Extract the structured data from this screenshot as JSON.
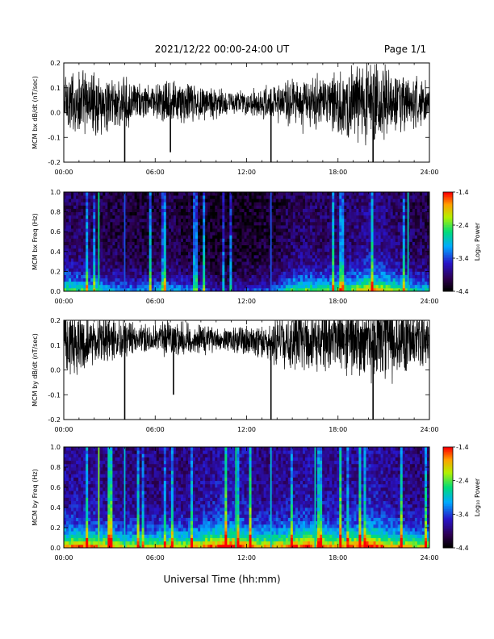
{
  "header": {
    "title": "2021/12/22  00:00-24:00 UT",
    "page": "Page 1/1"
  },
  "footer": {
    "xlabel": "Universal Time (hh:mm)"
  },
  "colors": {
    "trace": "#000000",
    "background": "#ffffff",
    "axis": "#000000"
  },
  "chart_data": [
    {
      "type": "line",
      "ylabel": "MCM bx dB/dt (nT/sec)",
      "ylim": [
        -0.2,
        0.2
      ],
      "yticks": [
        "0.2",
        "0.1",
        "0.0",
        "-0.1",
        "-0.2"
      ],
      "yticks_values": [
        0.2,
        0.1,
        0.0,
        -0.1,
        -0.2
      ],
      "xlim": [
        0,
        24
      ],
      "xticks": [
        "00:00",
        "06:00",
        "12:00",
        "18:00",
        "24:00"
      ],
      "x": [
        0,
        1,
        2,
        3,
        4,
        5,
        6,
        7,
        8,
        9,
        10,
        11,
        12,
        13,
        14,
        15,
        16,
        17,
        18,
        19,
        20,
        21,
        22,
        23,
        24
      ],
      "amplitude": [
        0.12,
        0.11,
        0.1,
        0.09,
        0.08,
        0.06,
        0.06,
        0.07,
        0.07,
        0.06,
        0.05,
        0.04,
        0.04,
        0.05,
        0.06,
        0.1,
        0.09,
        0.08,
        0.1,
        0.11,
        0.14,
        0.13,
        0.1,
        0.08,
        0.07
      ],
      "baseline": 0.04,
      "spikes": [
        {
          "x": 4.0,
          "y": -0.2
        },
        {
          "x": 13.6,
          "y": -0.2
        },
        {
          "x": 7.0,
          "y": -0.16
        },
        {
          "x": 20.3,
          "y": -0.2
        }
      ]
    },
    {
      "type": "heatmap",
      "ylabel": "MCM bx Freq (Hz)",
      "ylim": [
        0,
        1
      ],
      "yticks": [
        "1.0",
        "0.8",
        "0.6",
        "0.4",
        "0.2",
        "0.0"
      ],
      "yticks_values": [
        1.0,
        0.8,
        0.6,
        0.4,
        0.2,
        0.0
      ],
      "xlim": [
        0,
        24
      ],
      "xticks": [
        "00:00",
        "06:00",
        "12:00",
        "18:00",
        "24:00"
      ],
      "colorbar": {
        "label": "Log₁₀ Power",
        "ticks": [
          "-1.4",
          "-2.4",
          "-3.4",
          "-4.4"
        ],
        "ticks_values": [
          -1.4,
          -2.4,
          -3.4,
          -4.4
        ]
      },
      "intensity": [
        0.3,
        0.28,
        0.25,
        0.22,
        0.2,
        0.18,
        0.2,
        0.22,
        0.18,
        0.15,
        0.12,
        0.12,
        0.14,
        0.16,
        0.18,
        0.28,
        0.3,
        0.28,
        0.3,
        0.32,
        0.4,
        0.36,
        0.3,
        0.25,
        0.24
      ],
      "vertical_lines": [
        {
          "x": 2.3,
          "level": 0.6
        },
        {
          "x": 22.6,
          "level": 0.55
        },
        {
          "x": 4.0,
          "level": 0.35
        },
        {
          "x": 13.6,
          "level": 0.35
        }
      ]
    },
    {
      "type": "line",
      "ylabel": "MCM by dB/dt (nT/sec)",
      "ylim": [
        -0.2,
        0.2
      ],
      "yticks": [
        "0.2",
        "0.1",
        "0.0",
        "-0.1",
        "-0.2"
      ],
      "yticks_values": [
        0.2,
        0.1,
        0.0,
        -0.1,
        -0.2
      ],
      "xlim": [
        0,
        24
      ],
      "xticks": [
        "00:00",
        "06:00",
        "12:00",
        "18:00",
        "24:00"
      ],
      "x": [
        0,
        1,
        2,
        3,
        4,
        5,
        6,
        7,
        8,
        9,
        10,
        11,
        12,
        13,
        14,
        15,
        16,
        17,
        18,
        19,
        20,
        21,
        22,
        23,
        24
      ],
      "amplitude": [
        0.12,
        0.11,
        0.09,
        0.08,
        0.06,
        0.05,
        0.05,
        0.07,
        0.06,
        0.05,
        0.04,
        0.04,
        0.05,
        0.06,
        0.08,
        0.1,
        0.09,
        0.09,
        0.1,
        0.12,
        0.14,
        0.14,
        0.12,
        0.1,
        0.09
      ],
      "baseline": 0.12,
      "spikes": [
        {
          "x": 4.0,
          "y": -0.2
        },
        {
          "x": 13.6,
          "y": -0.2
        },
        {
          "x": 7.2,
          "y": -0.1
        },
        {
          "x": 20.3,
          "y": -0.2
        }
      ]
    },
    {
      "type": "heatmap",
      "ylabel": "MCM by Freq (Hz)",
      "ylim": [
        0,
        1
      ],
      "yticks": [
        "1.0",
        "0.8",
        "0.6",
        "0.4",
        "0.2",
        "0.0"
      ],
      "yticks_values": [
        1.0,
        0.8,
        0.6,
        0.4,
        0.2,
        0.0
      ],
      "xlim": [
        0,
        24
      ],
      "xticks": [
        "00:00",
        "06:00",
        "12:00",
        "18:00",
        "24:00"
      ],
      "colorbar": {
        "label": "Log₁₀ Power",
        "ticks": [
          "-1.4",
          "-2.4",
          "-3.4",
          "-4.4"
        ],
        "ticks_values": [
          -1.4,
          -2.4,
          -3.4,
          -4.4
        ]
      },
      "intensity": [
        0.4,
        0.42,
        0.4,
        0.38,
        0.35,
        0.33,
        0.35,
        0.38,
        0.36,
        0.4,
        0.45,
        0.48,
        0.42,
        0.38,
        0.4,
        0.42,
        0.45,
        0.42,
        0.4,
        0.42,
        0.48,
        0.42,
        0.38,
        0.35,
        0.34
      ],
      "vertical_lines": [
        {
          "x": 2.3,
          "level": 0.7
        },
        {
          "x": 4.0,
          "level": 0.5
        },
        {
          "x": 11.3,
          "level": 0.6
        },
        {
          "x": 13.6,
          "level": 0.5
        },
        {
          "x": 16.5,
          "level": 0.55
        }
      ]
    }
  ]
}
